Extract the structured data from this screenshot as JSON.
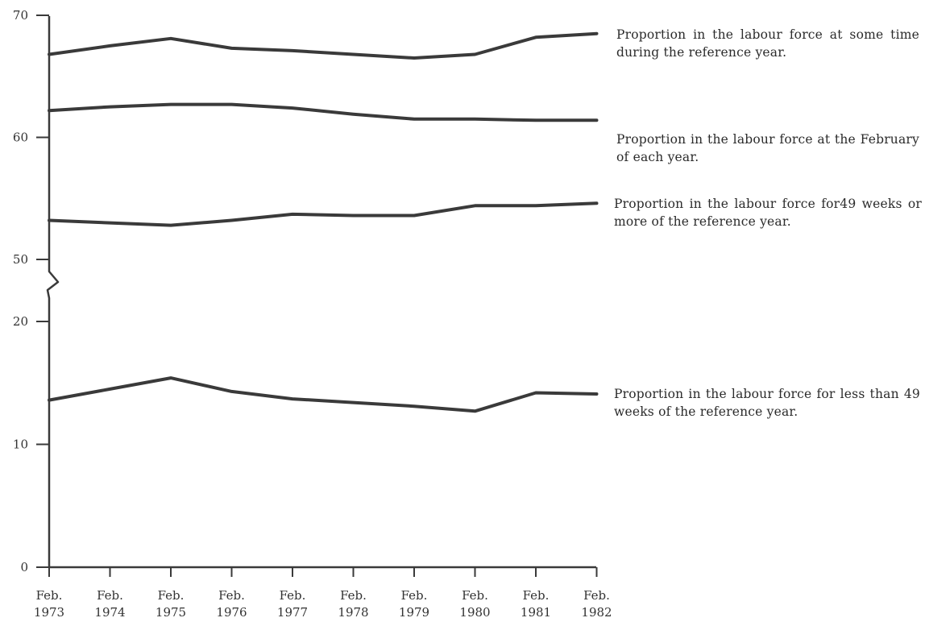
{
  "chart_data": {
    "type": "line",
    "categories": [
      "Feb. 1973",
      "Feb. 1974",
      "Feb. 1975",
      "Feb. 1976",
      "Feb. 1977",
      "Feb. 1978",
      "Feb. 1979",
      "Feb. 1980",
      "Feb. 1981",
      "Feb. 1982"
    ],
    "x_tick_labels": [
      {
        "month": "Feb.",
        "year": "1973"
      },
      {
        "month": "Feb.",
        "year": "1974"
      },
      {
        "month": "Feb.",
        "year": "1975"
      },
      {
        "month": "Feb.",
        "year": "1976"
      },
      {
        "month": "Feb.",
        "year": "1977"
      },
      {
        "month": "Feb.",
        "year": "1978"
      },
      {
        "month": "Feb.",
        "year": "1979"
      },
      {
        "month": "Feb.",
        "year": "1980"
      },
      {
        "month": "Feb.",
        "year": "1981"
      },
      {
        "month": "Feb.",
        "year": "1982"
      }
    ],
    "y_ticks": [
      "0",
      "10",
      "20",
      "50",
      "60",
      "70"
    ],
    "axis_break": "between 20 and 50",
    "ylim": [
      0,
      70
    ],
    "grid": false,
    "legend_placement": "right, label beside each line",
    "line_color": "#3a3a3a",
    "series": [
      {
        "name": "Proportion in the labour force at some time during the reference year.",
        "values": [
          66.8,
          67.5,
          68.1,
          67.3,
          67.1,
          66.8,
          66.5,
          66.8,
          68.2,
          68.5
        ]
      },
      {
        "name": "Proportion in the labour force at the February of each year.",
        "values": [
          62.2,
          62.5,
          62.7,
          62.7,
          62.4,
          61.9,
          61.5,
          61.5,
          61.4,
          61.4
        ]
      },
      {
        "name": "Proportion in the labour force for49 weeks or more of the reference year.",
        "values": [
          53.2,
          53.0,
          52.8,
          53.2,
          53.7,
          53.6,
          53.6,
          54.4,
          54.4,
          54.6
        ]
      },
      {
        "name": "Proportion in the labour force for less than 49 weeks of the reference year.",
        "values": [
          13.6,
          14.5,
          15.4,
          14.3,
          13.7,
          13.4,
          13.1,
          12.7,
          14.2,
          14.1
        ]
      }
    ]
  }
}
